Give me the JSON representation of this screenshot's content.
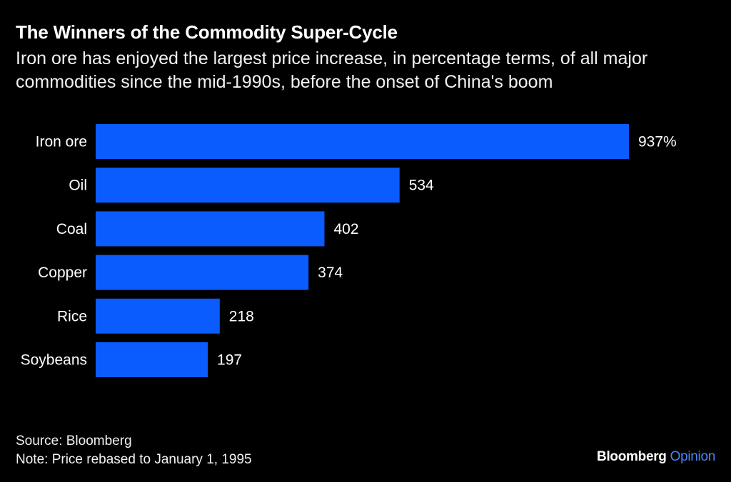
{
  "title": "The Winners of the Commodity Super-Cycle",
  "subtitle": "Iron ore has enjoyed the largest price increase, in percentage terms, of all major commodities since the mid-1990s, before the onset of China's boom",
  "source": "Source: Bloomberg",
  "note": "Note: Price rebased to January 1, 1995",
  "logo": {
    "brand": "Bloomberg",
    "section": "Opinion",
    "brand_color": "#ffffff",
    "section_color": "#4a86f7"
  },
  "colors": {
    "background": "#000000",
    "bar": "#0a5cff",
    "text": "#ffffff"
  },
  "chart_data": {
    "type": "bar",
    "orientation": "horizontal",
    "title": "The Winners of the Commodity Super-Cycle",
    "subtitle": "Iron ore has enjoyed the largest price increase, in percentage terms, of all major commodities since the mid-1990s, before the onset of China's boom",
    "categories": [
      "Iron ore",
      "Oil",
      "Coal",
      "Copper",
      "Rice",
      "Soybeans"
    ],
    "values": [
      937,
      534,
      402,
      374,
      218,
      197
    ],
    "value_labels": [
      "937%",
      "534",
      "402",
      "374",
      "218",
      "197"
    ],
    "xlabel": "",
    "ylabel": "",
    "xlim": [
      0,
      937
    ],
    "grid": false,
    "legend": "none"
  }
}
